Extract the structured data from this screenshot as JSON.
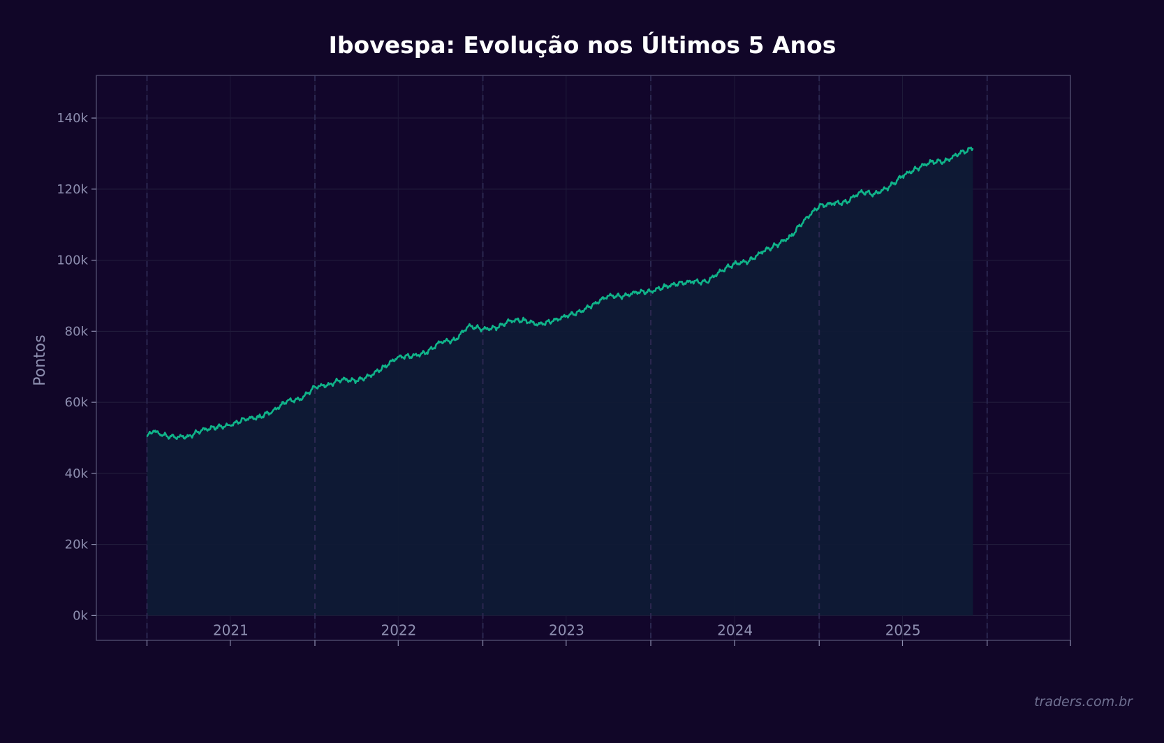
{
  "chart_data": {
    "type": "area",
    "title": "Ibovespa: Evolução nos Últimos 5 Anos",
    "xlabel": "",
    "ylabel": "Pontos",
    "ylim": [
      -7000,
      152000
    ],
    "xlim": [
      "2020-09-13",
      "2026-07-01"
    ],
    "y_ticks": [
      0,
      20000,
      40000,
      60000,
      80000,
      100000,
      120000,
      140000
    ],
    "y_tick_labels": [
      "0k",
      "20k",
      "40k",
      "60k",
      "80k",
      "100k",
      "120k",
      "140k"
    ],
    "year_labels": [
      "2021",
      "2022",
      "2023",
      "2024",
      "2025"
    ],
    "year_dividers": [
      "2021-01-01",
      "2022-01-01",
      "2023-01-01",
      "2024-01-01",
      "2025-01-01",
      "2026-01-01"
    ],
    "x_minor_ticks": [
      "2021-01-01",
      "2021-07-01",
      "2022-01-01",
      "2022-07-01",
      "2023-01-01",
      "2023-07-01",
      "2024-01-01",
      "2024-07-01",
      "2025-01-01",
      "2025-07-01",
      "2026-01-01",
      "2026-07-01"
    ],
    "grid": true,
    "line_color": "#10b48a",
    "fill_color": "#0f1a35",
    "background_color": "#110628",
    "series": [
      {
        "x": [
          "2021-01-01",
          "2021-01-15",
          "2021-02-01",
          "2021-03-01",
          "2021-04-01",
          "2021-05-01",
          "2021-06-01",
          "2021-07-01",
          "2021-08-01",
          "2021-09-01",
          "2021-10-01",
          "2021-11-01",
          "2021-12-01",
          "2022-01-01",
          "2022-02-01",
          "2022-03-01",
          "2022-04-01",
          "2022-05-01",
          "2022-06-01",
          "2022-07-01",
          "2022-08-01",
          "2022-09-01",
          "2022-10-01",
          "2022-11-01",
          "2022-12-01",
          "2023-01-01",
          "2023-02-01",
          "2023-03-01",
          "2023-04-01",
          "2023-05-01",
          "2023-06-01",
          "2023-07-01",
          "2023-08-01",
          "2023-09-01",
          "2023-10-01",
          "2023-11-01",
          "2023-12-01",
          "2024-01-01",
          "2024-02-01",
          "2024-03-01",
          "2024-04-01",
          "2024-05-01",
          "2024-06-01",
          "2024-07-01",
          "2024-08-01",
          "2024-09-01",
          "2024-10-01",
          "2024-11-01",
          "2024-12-01",
          "2025-01-01",
          "2025-02-01",
          "2025-03-01",
          "2025-04-01",
          "2025-05-01",
          "2025-06-01",
          "2025-07-01",
          "2025-08-01",
          "2025-09-01",
          "2025-10-01",
          "2025-11-01",
          "2025-12-01"
        ],
        "values": [
          50300,
          52000,
          50800,
          50200,
          50400,
          52200,
          53000,
          53500,
          55300,
          55800,
          57500,
          60300,
          60900,
          64300,
          65000,
          66500,
          66000,
          67500,
          70000,
          72800,
          73000,
          74000,
          77000,
          77500,
          81500,
          80600,
          81000,
          83000,
          83100,
          81900,
          82800,
          84300,
          85500,
          87800,
          90000,
          89800,
          91000,
          91200,
          92600,
          93400,
          94000,
          93800,
          97000,
          99000,
          99700,
          102500,
          104300,
          106800,
          111500,
          115200,
          116000,
          116300,
          119300,
          118600,
          120500,
          123700,
          125800,
          127700,
          127800,
          130000,
          131500
        ]
      }
    ]
  },
  "watermark": "traders.com.br"
}
